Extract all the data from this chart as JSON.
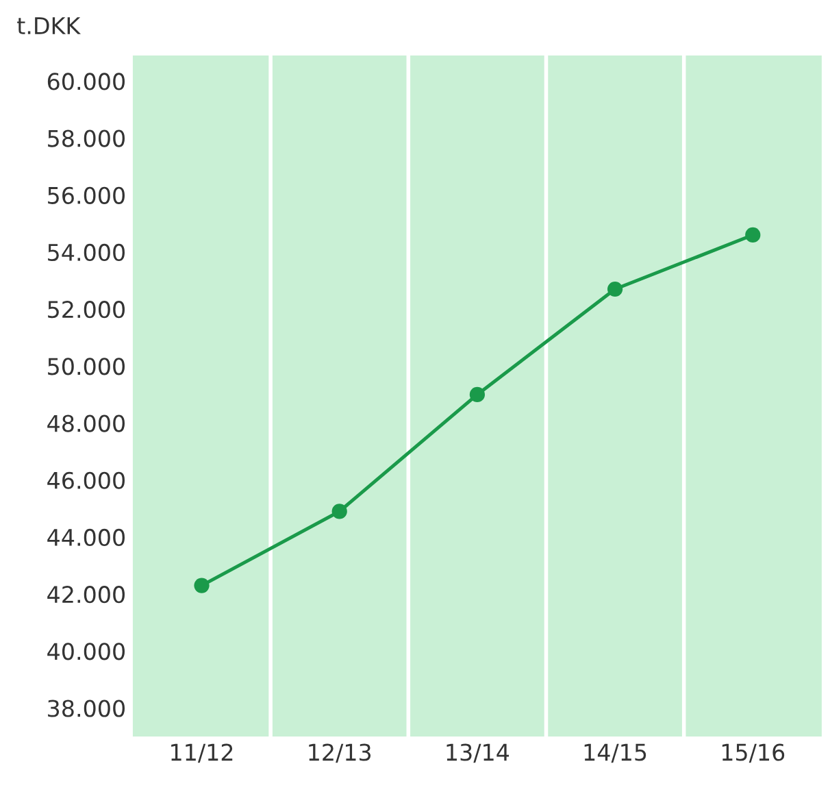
{
  "chart_data": {
    "type": "line",
    "ylabel": "t.DKK",
    "categories": [
      "11/12",
      "12/13",
      "13/14",
      "14/15",
      "15/16"
    ],
    "series": [
      {
        "color": "#1a9a4a",
        "values": [
          42300,
          44900,
          49000,
          52700,
          54600
        ]
      }
    ],
    "ylim": [
      37000,
      60900
    ],
    "yticks": [
      {
        "value": 38000,
        "label": "38.000"
      },
      {
        "value": 40000,
        "label": "40.000"
      },
      {
        "value": 42000,
        "label": "42.000"
      },
      {
        "value": 44000,
        "label": "44.000"
      },
      {
        "value": 46000,
        "label": "46.000"
      },
      {
        "value": 48000,
        "label": "48.000"
      },
      {
        "value": 50000,
        "label": "50.000"
      },
      {
        "value": 52000,
        "label": "52.000"
      },
      {
        "value": 54000,
        "label": "54.000"
      },
      {
        "value": 56000,
        "label": "56.000"
      },
      {
        "value": 58000,
        "label": "58.000"
      },
      {
        "value": 60000,
        "label": "60.000"
      }
    ],
    "grid": "x",
    "marker": "circle",
    "line_style": "solid"
  }
}
